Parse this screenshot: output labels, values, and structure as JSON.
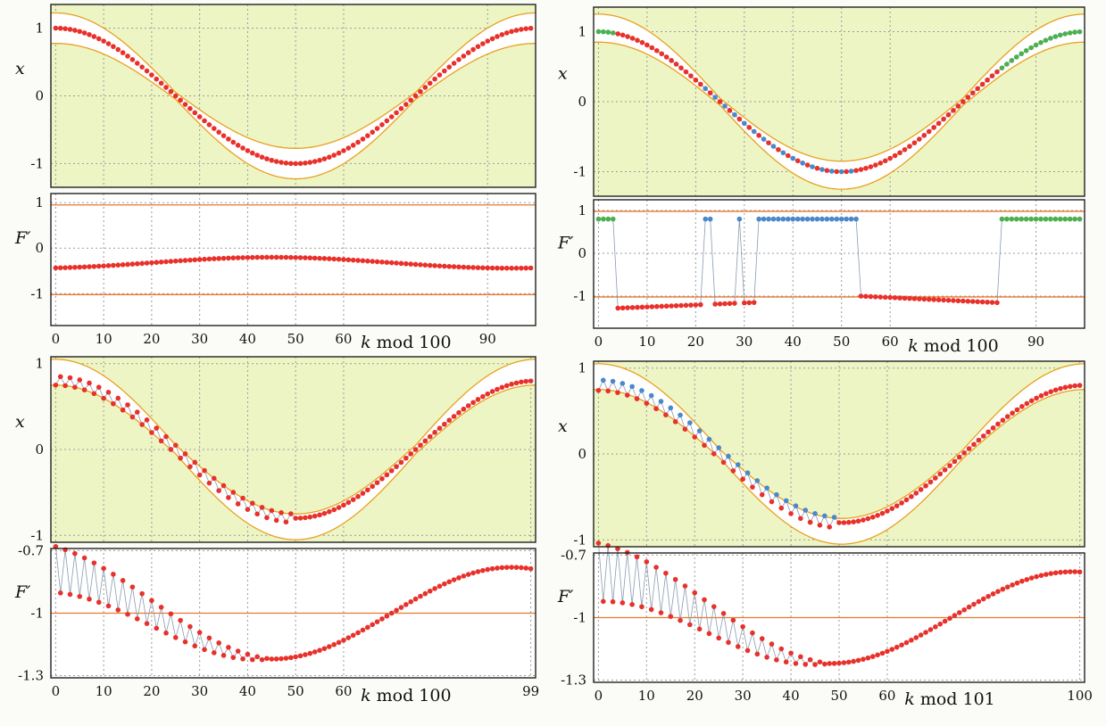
{
  "figure": {
    "background": "#fbfbf7",
    "band_fill": "#eef5c4",
    "envelope_color": "#e8a020",
    "point_color": "#e8312b",
    "blue_point_color": "#4a88cc",
    "green_point_color": "#4caf50",
    "threshold_color": "#e87830",
    "connector_color": "#8a9bb0"
  },
  "chart_data": [
    {
      "panel": "top-left",
      "type": "scatter",
      "x": {
        "label": "k mod 100",
        "label_var": "k",
        "label_rest": " mod 100",
        "range": [
          -1,
          100
        ],
        "ticks": [
          0,
          10,
          20,
          30,
          40,
          50,
          60,
          90
        ],
        "tick_labels": [
          "0",
          "10",
          "20",
          "30",
          "40",
          "50",
          "60",
          "90"
        ]
      },
      "grid": true,
      "upper": {
        "ylabel": "x",
        "yrange": [
          -1.35,
          1.35
        ],
        "yticks": [
          1,
          0,
          -1
        ],
        "ytick_labels": [
          "1",
          "0",
          "-1"
        ],
        "band": {
          "center_amplitude": 1.0,
          "width": 0.35,
          "amplitude_offset": 0.0
        },
        "points": {
          "amplitude": 1.0,
          "mode": "smooth"
        }
      },
      "lower": {
        "ylabel": "F′",
        "yrange": [
          -1.7,
          1.2
        ],
        "yticks": [
          1,
          0,
          -1
        ],
        "ytick_labels": [
          "1",
          "0",
          "-1"
        ],
        "hlines": [
          0.95,
          -1.02
        ],
        "points": {
          "formula": "cos",
          "center": -0.32,
          "amp": 0.12,
          "phase_k": 45
        }
      }
    },
    {
      "panel": "top-right",
      "type": "scatter",
      "x": {
        "label": "k mod 100",
        "label_var": "k",
        "label_rest": " mod 100",
        "range": [
          -1,
          100
        ],
        "ticks": [
          0,
          10,
          20,
          30,
          40,
          50,
          60,
          90
        ],
        "tick_labels": [
          "0",
          "10",
          "20",
          "30",
          "40",
          "50",
          "60",
          "90"
        ]
      },
      "grid": true,
      "upper": {
        "ylabel": "x",
        "yrange": [
          -1.35,
          1.35
        ],
        "yticks": [
          1,
          0,
          -1
        ],
        "ytick_labels": [
          "1",
          "0",
          "-1"
        ],
        "band": {
          "center_amplitude": 1.05,
          "width": 0.3,
          "amplitude_offset": 0.0
        },
        "points": {
          "amplitude": 1.0,
          "mode": "colored"
        }
      },
      "lower": {
        "ylabel": "F′",
        "yrange": [
          -1.75,
          1.25
        ],
        "yticks": [
          1,
          0,
          -1
        ],
        "ytick_labels": [
          "1",
          "0",
          "-1"
        ],
        "hlines": [
          0.98,
          -1.02
        ],
        "points": {
          "formula": "switching",
          "green_k": [
            0,
            1,
            2,
            3,
            83,
            84,
            85,
            86,
            87,
            88,
            89,
            90,
            91,
            92,
            93,
            94,
            95,
            96,
            97,
            98,
            99
          ],
          "blue_k": [
            22,
            23,
            29,
            33,
            34,
            35,
            36,
            37,
            38,
            39,
            40,
            41,
            42,
            43,
            44,
            45,
            46,
            47,
            48,
            49,
            50,
            51,
            52,
            53
          ],
          "high_value": 0.8,
          "low_start": -1.3,
          "low_end": -1.05
        }
      }
    },
    {
      "panel": "bottom-left",
      "type": "scatter",
      "x": {
        "label": "k mod 100",
        "label_var": "k",
        "label_rest": " mod 100",
        "range": [
          -1,
          100
        ],
        "ticks": [
          0,
          10,
          20,
          30,
          40,
          50,
          60,
          99
        ],
        "tick_labels": [
          "0",
          "10",
          "20",
          "30",
          "40",
          "50",
          "60",
          "99"
        ]
      },
      "grid": true,
      "upper": {
        "ylabel": "x",
        "yrange": [
          -1.08,
          1.08
        ],
        "yticks": [
          1,
          0,
          -1
        ],
        "ytick_labels": [
          "1",
          "0",
          "-1"
        ],
        "band": {
          "center_amplitude": 0.9,
          "width": 0.2,
          "amplitude_offset": 0.0
        },
        "points": {
          "amplitude": 0.8,
          "mode": "zigzag"
        }
      },
      "lower": {
        "ylabel": "F′",
        "yrange": [
          -1.31,
          -0.69
        ],
        "yticks": [
          -0.7,
          -1,
          -1.3
        ],
        "ytick_labels": [
          "-0.7",
          "-1",
          "-1.3"
        ],
        "hlines": [
          -1.0
        ],
        "points": {
          "formula": "zigzag",
          "center": -1.0,
          "amp": 0.22,
          "phase_k": 45,
          "zig_until": 45
        }
      }
    },
    {
      "panel": "bottom-right",
      "type": "scatter",
      "x": {
        "label": "k mod 101",
        "label_var": "k",
        "label_rest": " mod 101",
        "range": [
          -1,
          101
        ],
        "ticks": [
          0,
          10,
          20,
          30,
          40,
          50,
          60,
          100
        ],
        "tick_labels": [
          "0",
          "10",
          "20",
          "30",
          "40",
          "50",
          "60",
          "100"
        ]
      },
      "grid": true,
      "upper": {
        "ylabel": "x",
        "yrange": [
          -1.08,
          1.08
        ],
        "yticks": [
          1,
          0,
          -1
        ],
        "ytick_labels": [
          "1",
          "0",
          "-1"
        ],
        "band": {
          "center_amplitude": 0.9,
          "width": 0.2,
          "amplitude_offset": 0.0
        },
        "points": {
          "amplitude": 0.8,
          "mode": "dense"
        }
      },
      "lower": {
        "ylabel": "F′",
        "yrange": [
          -1.31,
          -0.69
        ],
        "yticks": [
          -0.7,
          -1,
          -1.3
        ],
        "ytick_labels": [
          "-0.7",
          "-1",
          "-1.3"
        ],
        "hlines": [
          -1.0
        ],
        "points": {
          "formula": "dense",
          "center": -1.0,
          "amp": 0.22,
          "phase_k": 48,
          "zig_until": 48
        }
      }
    }
  ]
}
